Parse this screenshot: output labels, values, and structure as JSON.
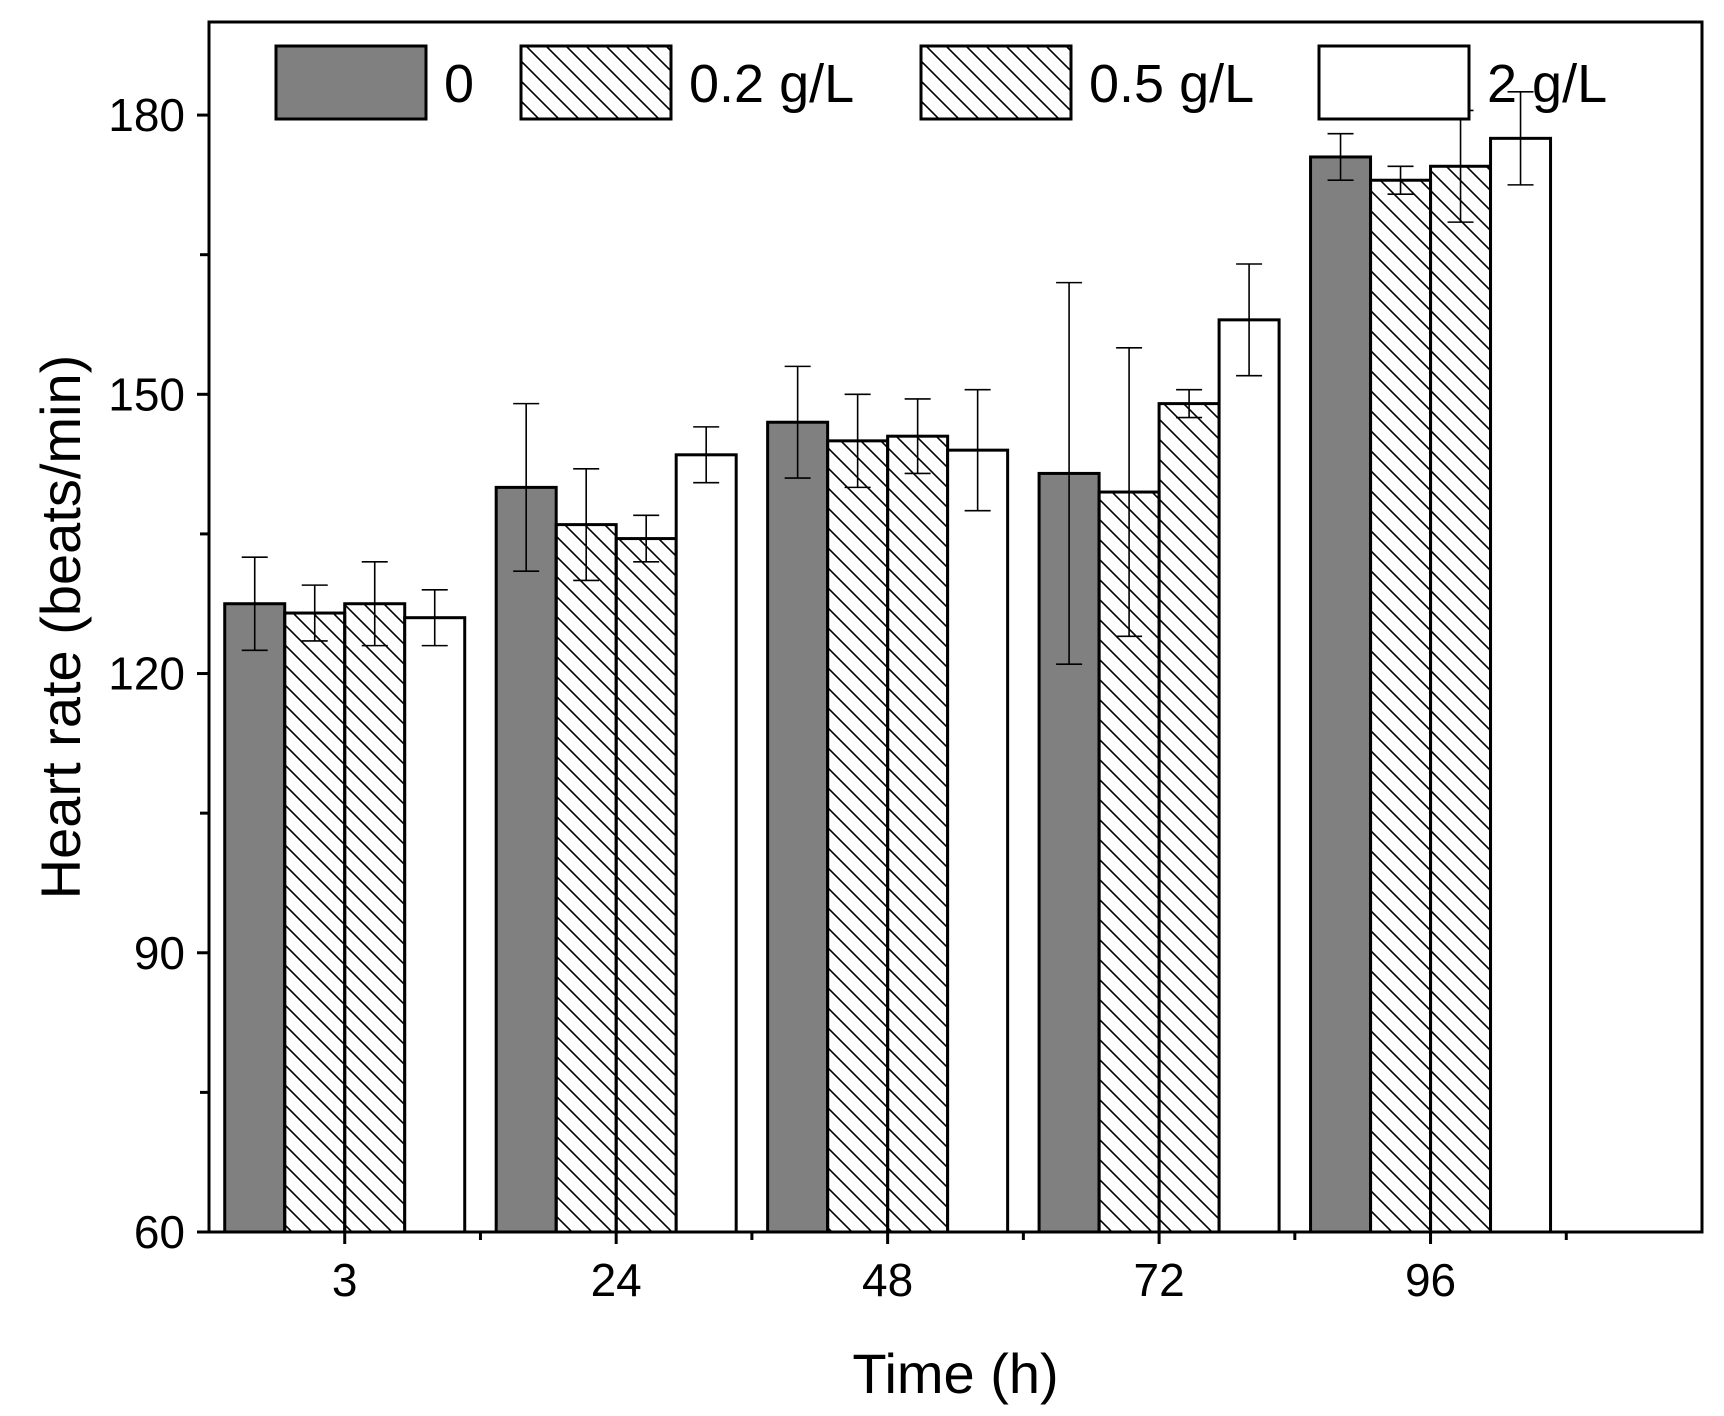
{
  "chart_data": {
    "type": "bar",
    "title": "",
    "xlabel": "Time (h)",
    "ylabel": "Heart rate (beats/min)",
    "categories": [
      "3",
      "24",
      "48",
      "72",
      "96"
    ],
    "ylim": [
      60,
      190
    ],
    "yticks": [
      60,
      90,
      120,
      150,
      180
    ],
    "y_minor_step": 15,
    "grid": false,
    "legend_position": "top",
    "series": [
      {
        "name": "0",
        "fill": "solid",
        "color": "#808080",
        "values": [
          127.5,
          140.0,
          147.0,
          141.5,
          175.5
        ],
        "errors": [
          5.0,
          9.0,
          6.0,
          20.5,
          2.5
        ]
      },
      {
        "name": "0.2 g/L",
        "fill": "hatch",
        "color": "#ffffff",
        "values": [
          126.5,
          136.0,
          145.0,
          139.5,
          173.0
        ],
        "errors": [
          3.0,
          6.0,
          5.0,
          15.5,
          1.5
        ]
      },
      {
        "name": "0.5 g/L",
        "fill": "hatch",
        "color": "#ffffff",
        "values": [
          127.5,
          134.5,
          145.5,
          149.0,
          174.5
        ],
        "errors": [
          4.5,
          2.5,
          4.0,
          1.5,
          6.0
        ]
      },
      {
        "name": "2 g/L",
        "fill": "none",
        "color": "#ffffff",
        "values": [
          126.0,
          143.5,
          144.0,
          158.0,
          177.5
        ],
        "errors": [
          3.0,
          3.0,
          6.5,
          6.0,
          5.0
        ]
      }
    ]
  }
}
